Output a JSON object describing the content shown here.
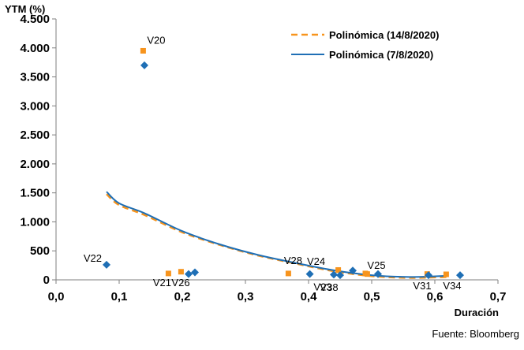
{
  "chart_data": {
    "type": "scatter",
    "ylabel": "YTM (%)",
    "xlabel": "Duración",
    "source": "Fuente: Bloomberg",
    "xlim": [
      0,
      0.7
    ],
    "ylim": [
      0,
      4500
    ],
    "x_ticks": [
      0.0,
      0.1,
      0.2,
      0.3,
      0.4,
      0.5,
      0.6,
      0.7
    ],
    "x_tick_labels": [
      "0,0",
      "0,1",
      "0,2",
      "0,3",
      "0,4",
      "0,5",
      "0,6",
      "0,7"
    ],
    "y_ticks": [
      0,
      500,
      1000,
      1500,
      2000,
      2500,
      3000,
      3500,
      4000,
      4500
    ],
    "y_tick_labels": [
      "0",
      "500",
      "1.000",
      "1.500",
      "2.000",
      "2.500",
      "3.000",
      "3.500",
      "4.000",
      "4.500"
    ],
    "grid": false,
    "legend_position": "top-right",
    "colors": {
      "orange": "#F7941D",
      "blue": "#1F6FB5",
      "axis": "#7f7f7f"
    },
    "series": [
      {
        "name": "14/8/2020",
        "kind": "points",
        "marker": "square",
        "color": "#F7941D",
        "points": [
          {
            "x": 0.138,
            "y": 3950
          },
          {
            "x": 0.178,
            "y": 110
          },
          {
            "x": 0.198,
            "y": 140
          },
          {
            "x": 0.368,
            "y": 110
          },
          {
            "x": 0.447,
            "y": 170
          },
          {
            "x": 0.49,
            "y": 110
          },
          {
            "x": 0.493,
            "y": 100
          },
          {
            "x": 0.588,
            "y": 100
          },
          {
            "x": 0.618,
            "y": 95
          }
        ]
      },
      {
        "name": "7/8/2020",
        "kind": "points",
        "marker": "diamond",
        "color": "#1F6FB5",
        "points": [
          {
            "x": 0.08,
            "y": 260
          },
          {
            "x": 0.14,
            "y": 3700
          },
          {
            "x": 0.21,
            "y": 100
          },
          {
            "x": 0.22,
            "y": 130
          },
          {
            "x": 0.402,
            "y": 100
          },
          {
            "x": 0.44,
            "y": 90
          },
          {
            "x": 0.45,
            "y": 80
          },
          {
            "x": 0.47,
            "y": 160
          },
          {
            "x": 0.51,
            "y": 100
          },
          {
            "x": 0.59,
            "y": 80
          },
          {
            "x": 0.64,
            "y": 80
          }
        ]
      },
      {
        "name": "Polinómica (14/8/2020)",
        "kind": "trend",
        "style": "dashed",
        "color": "#F7941D",
        "x": [
          0.08,
          0.1,
          0.14,
          0.2,
          0.26,
          0.32,
          0.38,
          0.44,
          0.5,
          0.56,
          0.62
        ],
        "y": [
          1480,
          1290,
          1120,
          820,
          600,
          420,
          280,
          150,
          65,
          35,
          50
        ]
      },
      {
        "name": "Polinómica (7/8/2020)",
        "kind": "trend",
        "style": "solid",
        "color": "#1F6FB5",
        "x": [
          0.08,
          0.1,
          0.14,
          0.2,
          0.26,
          0.32,
          0.38,
          0.44,
          0.5,
          0.56,
          0.62
        ],
        "y": [
          1520,
          1320,
          1150,
          840,
          610,
          430,
          290,
          165,
          80,
          50,
          70
        ]
      }
    ],
    "point_labels": [
      {
        "text": "V20",
        "x": 0.138,
        "y": 3950,
        "anchor": "start"
      },
      {
        "text": "V22",
        "x": 0.08,
        "y": 260,
        "anchor": "end"
      },
      {
        "text": "V21",
        "x": 0.178,
        "y": 110,
        "anchor": "middle"
      },
      {
        "text": "V26",
        "x": 0.195,
        "y": 110,
        "anchor": "middle"
      },
      {
        "text": "V28",
        "x": 0.368,
        "y": 120,
        "anchor": "middle"
      },
      {
        "text": "V24",
        "x": 0.402,
        "y": 120,
        "anchor": "middle"
      },
      {
        "text": "V23",
        "x": 0.41,
        "y": 90,
        "anchor": "middle"
      },
      {
        "text": "V38",
        "x": 0.44,
        "y": 80,
        "anchor": "middle"
      },
      {
        "text": "V25",
        "x": 0.51,
        "y": 110,
        "anchor": "middle"
      },
      {
        "text": "V31",
        "x": 0.59,
        "y": 80,
        "anchor": "middle"
      },
      {
        "text": "V34",
        "x": 0.62,
        "y": 80,
        "anchor": "middle"
      }
    ]
  }
}
